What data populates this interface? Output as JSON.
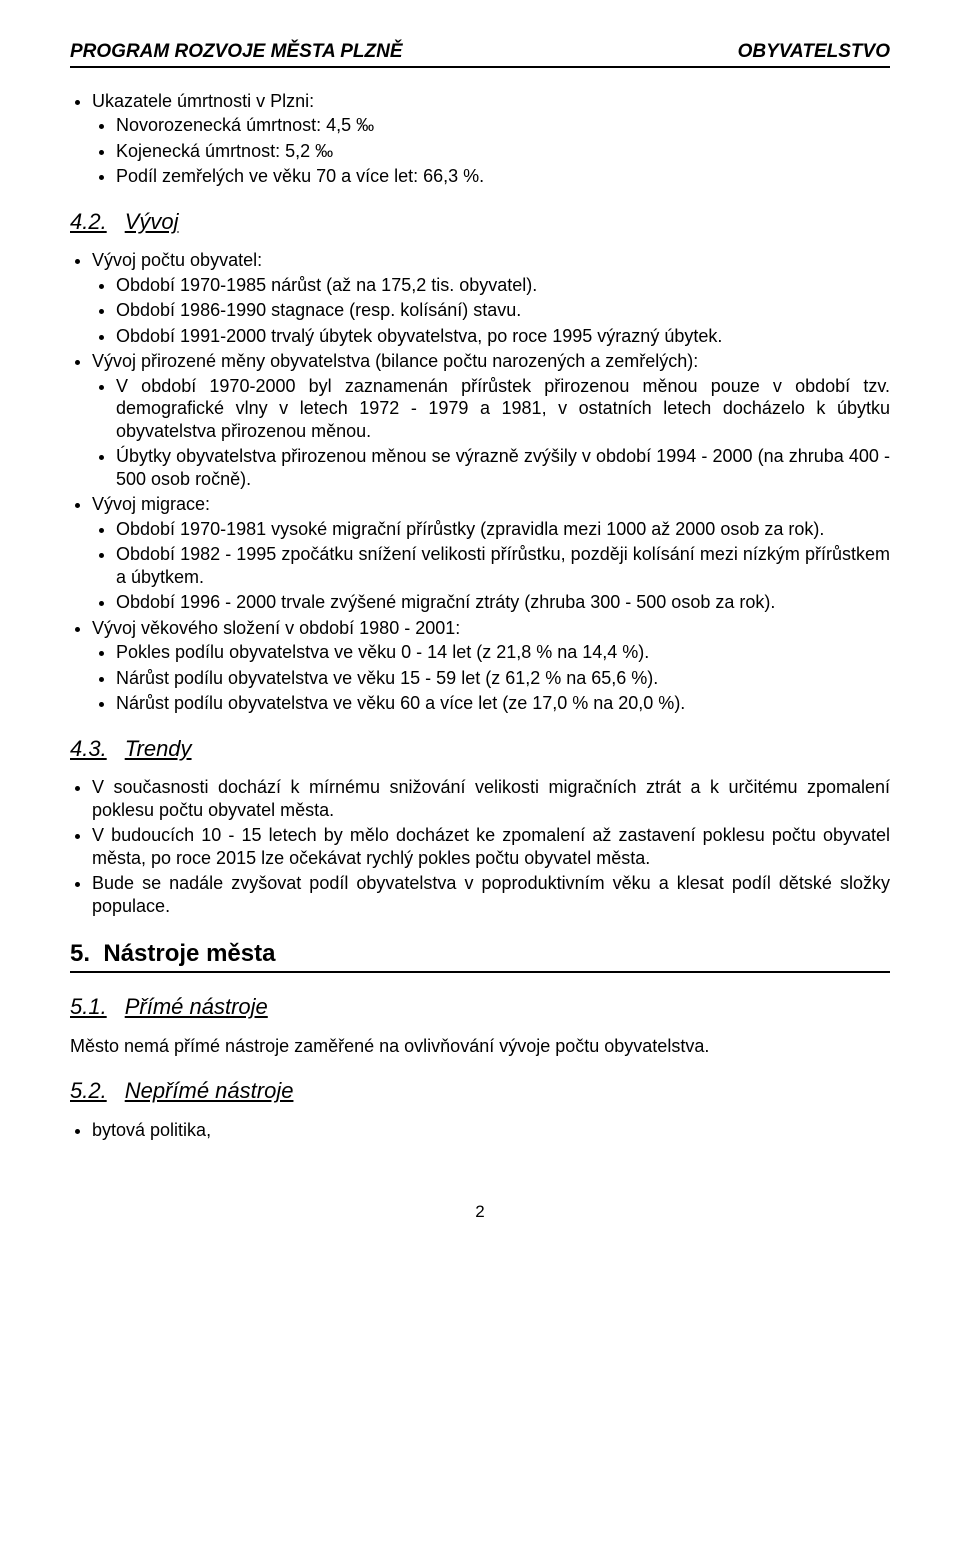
{
  "header": {
    "left": "PROGRAM ROZVOJE MĚSTA PLZNĚ",
    "right": "OBYVATELSTVO"
  },
  "intro_bullets": {
    "item0": "Ukazatele úmrtnosti v Plzni:",
    "sub0": "Novorozenecká úmrtnost: 4,5 ‰",
    "sub1": "Kojenecká úmrtnost: 5,2 ‰",
    "sub2": "Podíl zemřelých ve věku 70 a více let: 66,3 %."
  },
  "sec42": {
    "num": "4.2.",
    "title": "Vývoj",
    "b0": "Vývoj počtu obyvatel:",
    "b0s0": "Období 1970-1985 nárůst (až na 175,2 tis. obyvatel).",
    "b0s1": "Období 1986-1990 stagnace (resp. kolísání) stavu.",
    "b0s2": "Období 1991-2000 trvalý úbytek obyvatelstva, po roce 1995 výrazný úbytek.",
    "b1": "Vývoj přirozené měny obyvatelstva (bilance počtu narozených a zemřelých):",
    "b1s0": "V období 1970-2000 byl zaznamenán přírůstek přirozenou měnou pouze v období tzv. demografické vlny v letech 1972 - 1979 a 1981, v ostatních letech docházelo k úbytku obyvatelstva přirozenou měnou.",
    "b1s1": "Úbytky obyvatelstva přirozenou měnou se výrazně zvýšily v období 1994 - 2000 (na zhruba 400 - 500 osob ročně).",
    "b2": "Vývoj migrace:",
    "b2s0": "Období 1970-1981 vysoké migrační přírůstky (zpravidla mezi 1000 až 2000 osob za rok).",
    "b2s1": "Období 1982 - 1995 zpočátku snížení velikosti přírůstku, později kolísání mezi nízkým přírůstkem a úbytkem.",
    "b2s2": "Období 1996 - 2000 trvale zvýšené migrační ztráty (zhruba 300 - 500 osob za rok).",
    "b3": "Vývoj věkového složení v období 1980 - 2001:",
    "b3s0": "Pokles podílu obyvatelstva ve věku 0 - 14 let (z 21,8 % na 14,4 %).",
    "b3s1": "Nárůst podílu obyvatelstva ve věku 15 - 59 let (z 61,2 % na 65,6 %).",
    "b3s2": "Nárůst podílu obyvatelstva ve věku 60 a více let (ze 17,0 % na 20,0 %)."
  },
  "sec43": {
    "num": "4.3.",
    "title": "Trendy",
    "b0": "V současnosti dochází k mírnému snižování velikosti migračních ztrát a k určitému zpomalení poklesu počtu obyvatel města.",
    "b1": "V budoucích 10 - 15 letech by mělo docházet ke zpomalení až zastavení poklesu počtu obyvatel města, po roce 2015 lze očekávat rychlý pokles počtu obyvatel města.",
    "b2": "Bude se nadále zvyšovat podíl obyvatelstva v poproduktivním věku a klesat podíl dětské složky populace."
  },
  "sec5": {
    "num": "5.",
    "title": "Nástroje města"
  },
  "sec51": {
    "num": "5.1.",
    "title": "Přímé nástroje",
    "para": "Město nemá přímé nástroje zaměřené na ovlivňování vývoje počtu obyvatelstva."
  },
  "sec52": {
    "num": "5.2.",
    "title": "Nepřímé nástroje",
    "b0": "bytová politika,"
  },
  "page_number": "2"
}
